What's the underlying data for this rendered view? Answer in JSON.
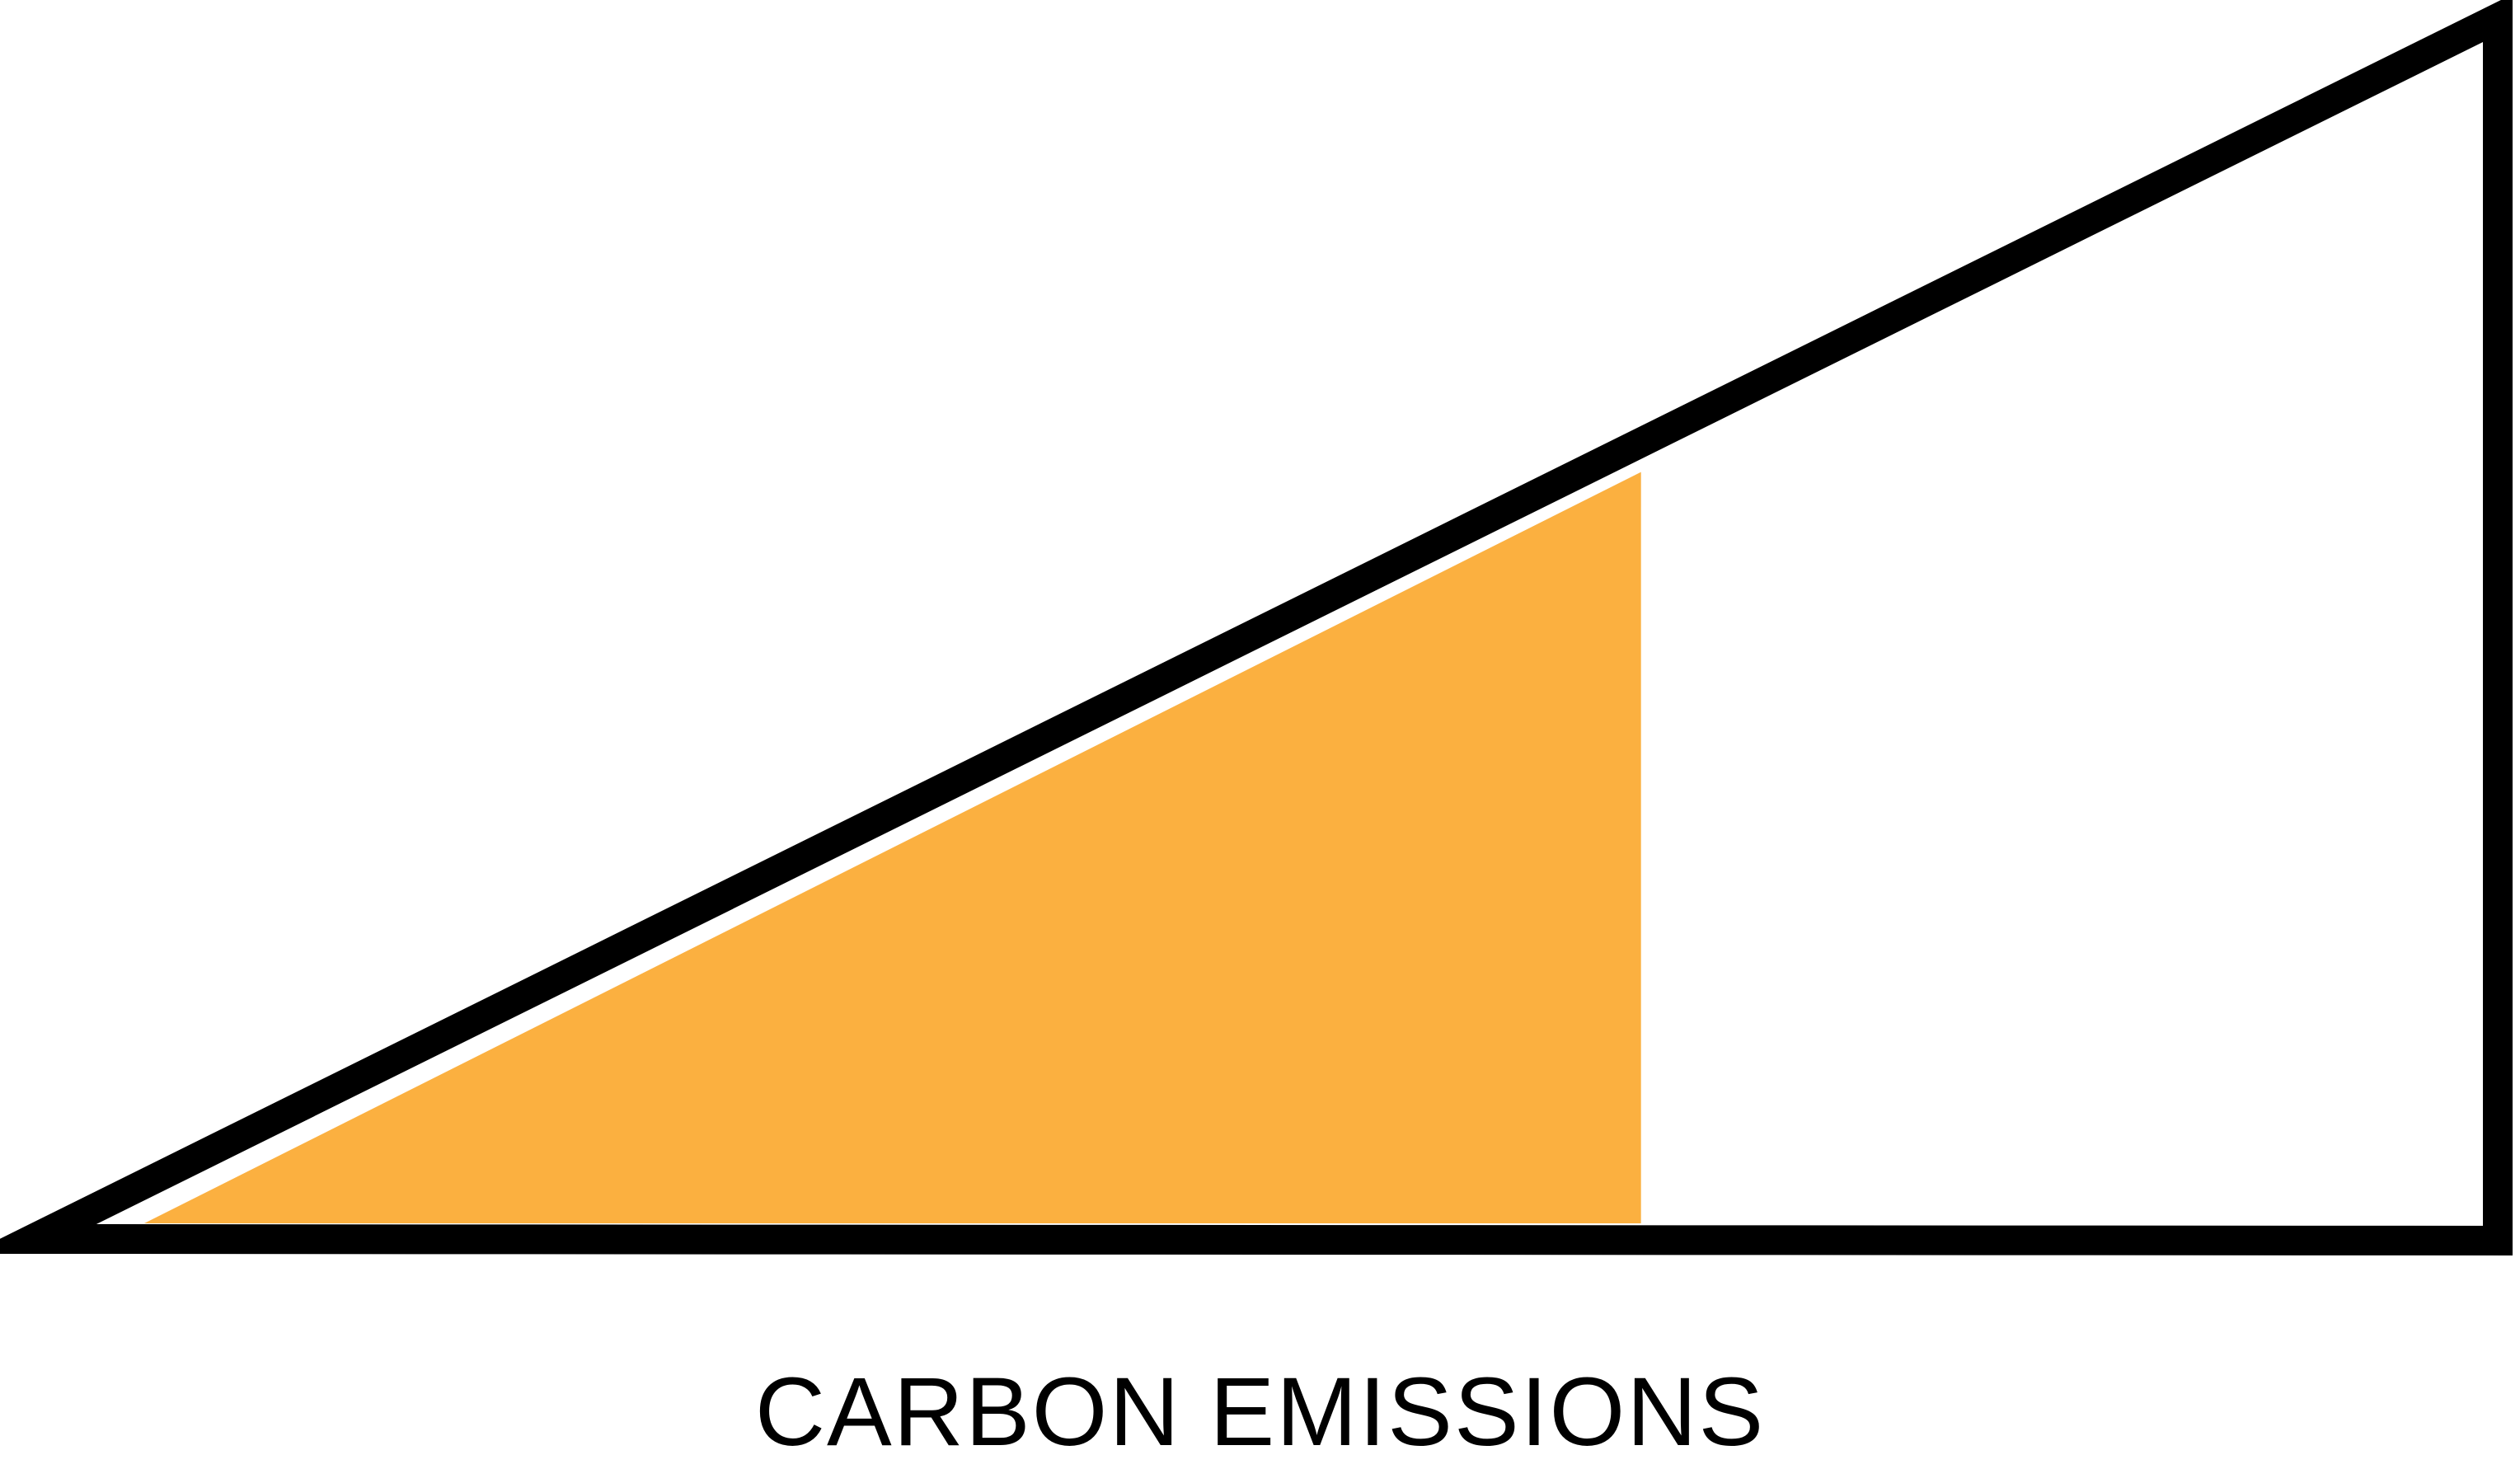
{
  "diagram": {
    "caption": "CARBON EMISSIONS",
    "level_fraction": 0.64,
    "colors": {
      "fill": "#FBB040",
      "outline": "#000000",
      "background": "#FFFFFF"
    }
  }
}
